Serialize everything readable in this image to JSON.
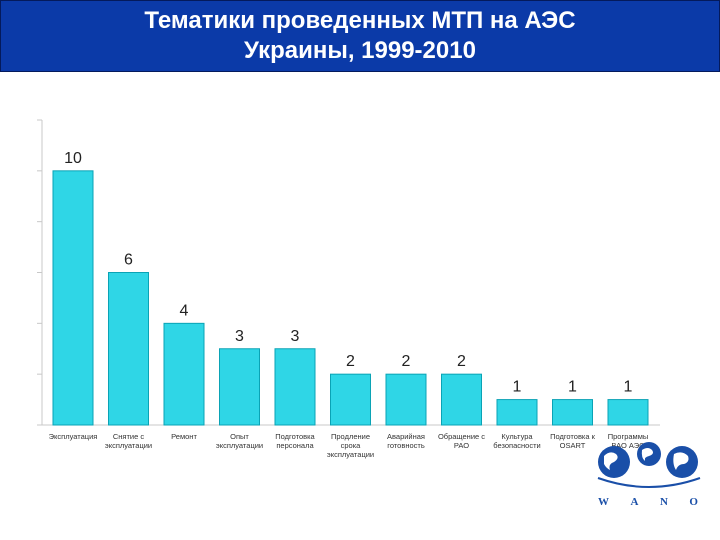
{
  "header": {
    "title_line1": "Тематики проведенных МТП на АЭС",
    "title_line2": "Украины, 1999-2010"
  },
  "chart_data": {
    "type": "bar",
    "title": "Тематики проведенных МТП на АЭС Украины, 1999-2010",
    "categories": [
      [
        "Эксплуатация"
      ],
      [
        "Снятие с",
        "эксплуатации"
      ],
      [
        "Ремонт"
      ],
      [
        "Опыт",
        "эксплуатации"
      ],
      [
        "Подготовка",
        "персонала"
      ],
      [
        "Продление",
        "срока",
        "эксплуатации"
      ],
      [
        "Аварийная",
        "готовность"
      ],
      [
        "Обращение с",
        "РАО"
      ],
      [
        "Культура",
        "безопасности"
      ],
      [
        "Подготовка к",
        "OSART"
      ],
      [
        "Программы",
        "ВАО АЭС"
      ]
    ],
    "values": [
      10,
      6,
      4,
      3,
      3,
      2,
      2,
      2,
      1,
      1,
      1
    ],
    "ylim": [
      0,
      12
    ],
    "bar_color": "#2fd6e6",
    "bar_edge_color": "#0aa3b5",
    "grid": false
  },
  "logo": {
    "letters": [
      "W",
      "A",
      "N",
      "O"
    ],
    "color": "#1a4fa8"
  }
}
